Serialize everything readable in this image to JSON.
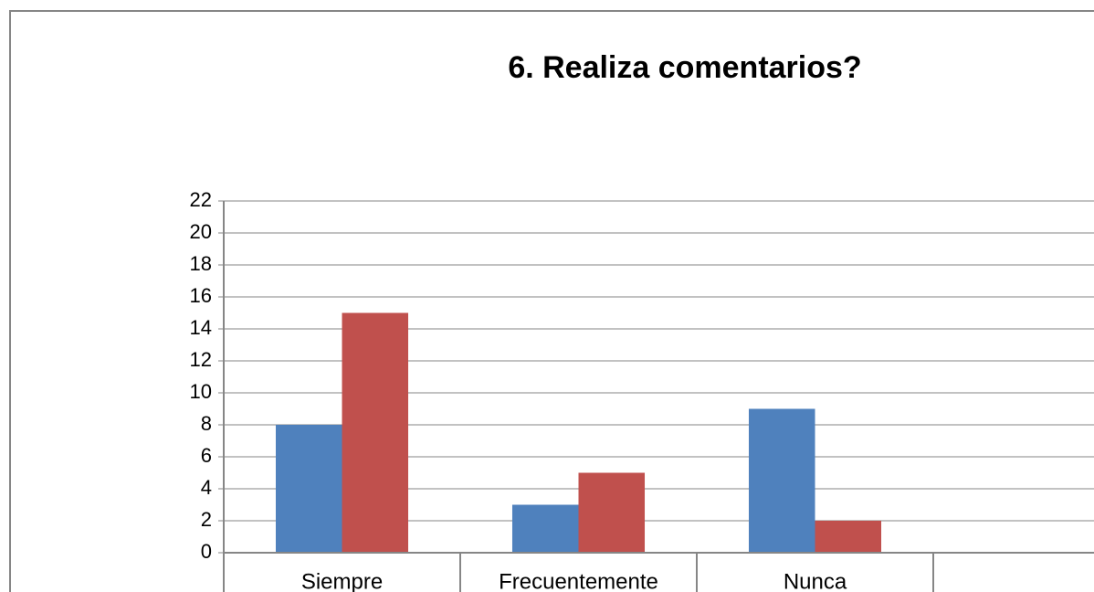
{
  "chart_data": {
    "type": "bar",
    "title": "6. Realiza comentarios?",
    "categories": [
      "Siempre",
      "Frecuentemente",
      "Nunca",
      null
    ],
    "series": [
      {
        "color": "#4f81bd",
        "values": [
          8,
          3,
          9,
          null
        ]
      },
      {
        "color": "#c0504d",
        "values": [
          15,
          5,
          2,
          null
        ]
      }
    ],
    "ylim": [
      0,
      22
    ],
    "yticks": [
      0,
      2,
      4,
      6,
      8,
      10,
      12,
      14,
      16,
      18,
      20,
      22
    ],
    "grid": true
  }
}
